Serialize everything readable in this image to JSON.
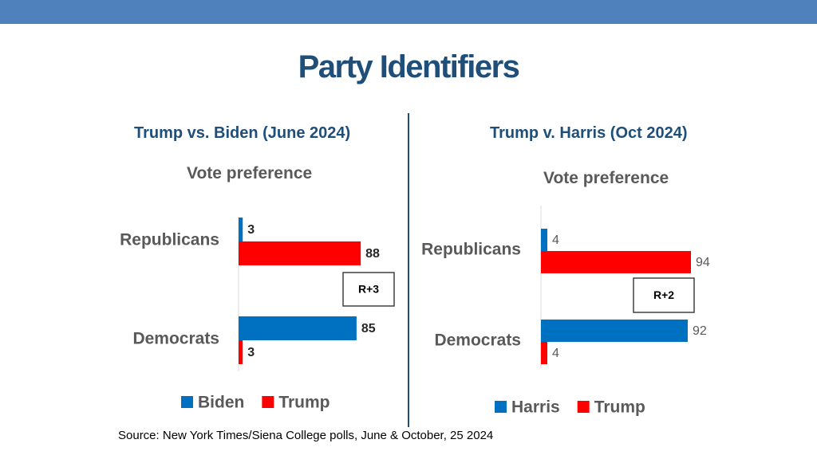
{
  "title": "Party Identifiers",
  "source": "Source: New York Times/Siena College polls, June & October, 25 2024",
  "colors": {
    "blue": "#0070c0",
    "red": "#ff0000",
    "header": "#4f81bd",
    "title": "#1f4e79"
  },
  "chart_data": [
    {
      "type": "bar",
      "orientation": "horizontal",
      "title": "Trump vs. Biden (June 2024)",
      "subtitle": "Vote preference",
      "categories": [
        "Republicans",
        "Democrats"
      ],
      "series": [
        {
          "name": "Biden",
          "color": "#0070c0",
          "values": [
            3,
            85
          ]
        },
        {
          "name": "Trump",
          "color": "#ff0000",
          "values": [
            88,
            3
          ]
        }
      ],
      "annotation": "R+3",
      "xlim": [
        0,
        100
      ]
    },
    {
      "type": "bar",
      "orientation": "horizontal",
      "title": "Trump v. Harris (Oct 2024)",
      "subtitle": "Vote preference",
      "categories": [
        "Republicans",
        "Democrats"
      ],
      "series": [
        {
          "name": "Harris",
          "color": "#0070c0",
          "values": [
            4,
            92
          ]
        },
        {
          "name": "Trump",
          "color": "#ff0000",
          "values": [
            94,
            4
          ]
        }
      ],
      "annotation": "R+2",
      "xlim": [
        0,
        100
      ]
    }
  ]
}
